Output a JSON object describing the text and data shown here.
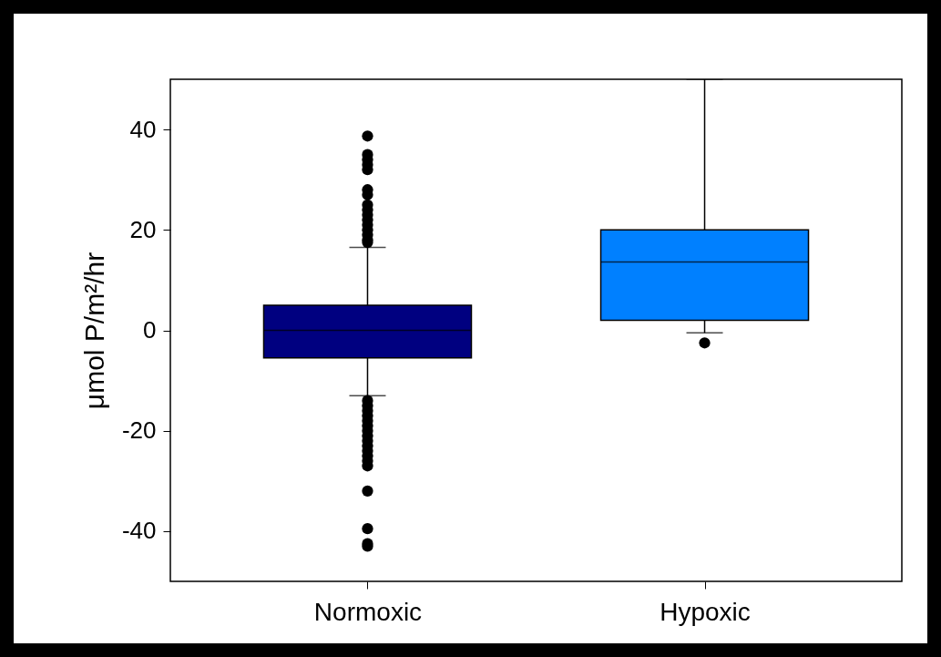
{
  "chart_data": {
    "type": "box",
    "ylabel": "μmol P/m²/hr",
    "categories": [
      "Normoxic",
      "Hypoxic"
    ],
    "colors": [
      "#000080",
      "#0080ff"
    ],
    "ylim": [
      -50,
      50
    ],
    "yticks": [
      -40,
      -20,
      0,
      20,
      40
    ],
    "grid": false,
    "legend": false,
    "boxes": [
      {
        "low": -13,
        "q1": -5.5,
        "median": 0,
        "q3": 5,
        "high": 16.5,
        "outliers": [
          38.7,
          35,
          34,
          33,
          32,
          28,
          27,
          25,
          24,
          23,
          22,
          21,
          20,
          19,
          18,
          17.5,
          -14,
          -15,
          -16,
          -17,
          -18,
          -19,
          -20,
          -21,
          -22,
          -23,
          -24,
          -25,
          -26,
          -27,
          -32,
          -39.5,
          -42.5,
          -43
        ]
      },
      {
        "low": -0.5,
        "q1": 2,
        "median": 13.6,
        "q3": 20,
        "high": 50,
        "outliers": [
          -2.5
        ]
      }
    ]
  }
}
